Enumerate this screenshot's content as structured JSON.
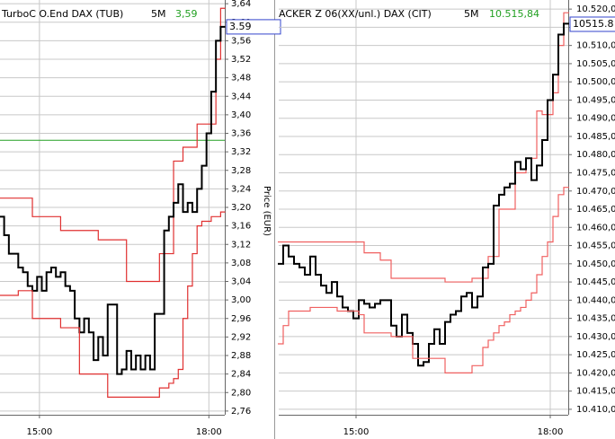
{
  "chart_data": [
    {
      "type": "line",
      "title": "TurboC O.End DAX (TUB)",
      "interval": "5M",
      "header_value": {
        "value": 3.59,
        "label": "3,59"
      },
      "header_value_color": "#22a022",
      "last_price": {
        "value": 3.59,
        "label": "3.59"
      },
      "last_price_box_color": "#3344cc",
      "y_axis_label": "Price (EUR)",
      "step": true,
      "reference_line": {
        "value": 3.345,
        "color": "#22a022"
      },
      "categories": [
        null,
        null,
        null,
        null,
        null,
        null,
        null,
        null,
        "15:00",
        null,
        null,
        null,
        null,
        null,
        null,
        null,
        null,
        null,
        null,
        null,
        null,
        null,
        null,
        null,
        null,
        null,
        null,
        null,
        null,
        null,
        null,
        null,
        null,
        null,
        null,
        null,
        null,
        null,
        null,
        null,
        null,
        null,
        null,
        null,
        "18:00",
        null,
        null,
        null
      ],
      "series": [
        {
          "color": "#e03030",
          "values": [
            3.22,
            3.22,
            3.22,
            3.22,
            3.22,
            3.22,
            3.22,
            3.18,
            3.18,
            3.18,
            3.18,
            3.18,
            3.18,
            3.15,
            3.15,
            3.15,
            3.15,
            3.15,
            3.15,
            3.15,
            3.15,
            3.13,
            3.13,
            3.13,
            3.13,
            3.13,
            3.13,
            3.04,
            3.04,
            3.04,
            3.04,
            3.04,
            3.04,
            3.04,
            3.1,
            3.1,
            3.1,
            3.3,
            3.3,
            3.33,
            3.33,
            3.33,
            3.38,
            3.38,
            3.38,
            3.38,
            3.52,
            3.63
          ]
        },
        {
          "color": "#000000",
          "values": [
            3.18,
            3.14,
            3.1,
            3.1,
            3.07,
            3.06,
            3.03,
            3.02,
            3.05,
            3.02,
            3.06,
            3.07,
            3.05,
            3.06,
            3.03,
            3.02,
            2.96,
            2.93,
            2.96,
            2.93,
            2.87,
            2.92,
            2.88,
            2.99,
            2.99,
            2.84,
            2.85,
            2.89,
            2.85,
            2.88,
            2.85,
            2.88,
            2.85,
            2.97,
            2.97,
            3.15,
            3.18,
            3.21,
            3.25,
            3.19,
            3.21,
            3.19,
            3.24,
            3.29,
            3.36,
            3.45,
            3.56,
            3.59
          ]
        },
        {
          "color": "#e03030",
          "values": [
            3.01,
            3.01,
            3.01,
            3.01,
            3.02,
            3.02,
            3.02,
            2.96,
            2.96,
            2.96,
            2.96,
            2.96,
            2.96,
            2.94,
            2.94,
            2.94,
            2.94,
            2.84,
            2.84,
            2.84,
            2.84,
            2.84,
            2.84,
            2.79,
            2.79,
            2.79,
            2.79,
            2.79,
            2.79,
            2.79,
            2.79,
            2.79,
            2.79,
            2.79,
            2.81,
            2.81,
            2.82,
            2.83,
            2.85,
            2.96,
            3.03,
            3.1,
            3.16,
            3.17,
            3.17,
            3.18,
            3.18,
            3.19
          ]
        }
      ],
      "ylim": [
        2.752,
        3.648
      ],
      "yticks": [
        {
          "value": 3.64,
          "label": "3,64"
        },
        {
          "value": 3.6,
          "label": "3,60"
        },
        {
          "value": 3.56,
          "label": "3,56"
        },
        {
          "value": 3.52,
          "label": "3,52"
        },
        {
          "value": 3.48,
          "label": "3,48"
        },
        {
          "value": 3.44,
          "label": "3,44"
        },
        {
          "value": 3.4,
          "label": "3,40"
        },
        {
          "value": 3.36,
          "label": "3,36"
        },
        {
          "value": 3.32,
          "label": "3,32"
        },
        {
          "value": 3.28,
          "label": "3,28"
        },
        {
          "value": 3.24,
          "label": "3,24"
        },
        {
          "value": 3.2,
          "label": "3,20"
        },
        {
          "value": 3.16,
          "label": "3,16"
        },
        {
          "value": 3.12,
          "label": "3,12"
        },
        {
          "value": 3.08,
          "label": "3,08"
        },
        {
          "value": 3.04,
          "label": "3,04"
        },
        {
          "value": 3.0,
          "label": "3,00"
        },
        {
          "value": 2.96,
          "label": "2,96"
        },
        {
          "value": 2.92,
          "label": "2,92"
        },
        {
          "value": 2.88,
          "label": "2,88"
        },
        {
          "value": 2.84,
          "label": "2,84"
        },
        {
          "value": 2.8,
          "label": "2,80"
        },
        {
          "value": 2.76,
          "label": "2,76"
        }
      ],
      "grid": true
    },
    {
      "type": "line",
      "title": "ACKER Z 06(XX/unl.) DAX (CIT)",
      "interval": "5M",
      "header_value": {
        "value": 10515.84,
        "label": "10.515,84"
      },
      "header_value_color": "#22a022",
      "last_price": {
        "value": 10515.84,
        "label": "10515.8"
      },
      "last_price_box_color": "#3344cc",
      "step": true,
      "categories": [
        null,
        null,
        null,
        null,
        null,
        null,
        null,
        null,
        null,
        null,
        null,
        null,
        null,
        null,
        "15:00",
        null,
        null,
        null,
        null,
        null,
        null,
        null,
        null,
        null,
        null,
        null,
        null,
        null,
        null,
        null,
        null,
        null,
        null,
        null,
        null,
        null,
        null,
        null,
        null,
        null,
        null,
        null,
        null,
        null,
        null,
        null,
        null,
        null,
        null,
        null,
        "18:00",
        null,
        null,
        null
      ],
      "series": [
        {
          "color": "#f06060",
          "values": [
            10456,
            10456,
            10456,
            10456,
            10456,
            10456,
            10456,
            10456,
            10456,
            10456,
            10456,
            10456,
            10456,
            10456,
            10456,
            10456,
            10453,
            10453,
            10453,
            10451,
            10451,
            10446,
            10446,
            10446,
            10446,
            10446,
            10446,
            10446,
            10446,
            10446,
            10446,
            10445,
            10445,
            10445,
            10445,
            10445,
            10446,
            10446,
            10446,
            10452,
            10452,
            10465,
            10465,
            10465,
            10475,
            10475,
            10479,
            10479,
            10492,
            10491,
            10491,
            10497,
            10510,
            10519
          ]
        },
        {
          "color": "#000000",
          "values": [
            10450,
            10455,
            10452,
            10450,
            10449,
            10447,
            10452,
            10447,
            10444,
            10442,
            10445,
            10441,
            10438,
            10437,
            10435,
            10440,
            10439,
            10438,
            10439,
            10440,
            10440,
            10433,
            10430,
            10436,
            10431,
            10428,
            10422,
            10423,
            10428,
            10432,
            10428,
            10434,
            10436,
            10437,
            10441,
            10442,
            10438,
            10441,
            10449,
            10450,
            10466,
            10469,
            10471,
            10472,
            10478,
            10476,
            10479,
            10473,
            10477,
            10484,
            10495,
            10502,
            10513,
            10516
          ]
        },
        {
          "color": "#f06060",
          "values": [
            10428,
            10433,
            10437,
            10437,
            10437,
            10437,
            10438,
            10438,
            10438,
            10438,
            10438,
            10437,
            10437,
            10437,
            10437,
            10436,
            10431,
            10431,
            10431,
            10431,
            10431,
            10430,
            10430,
            10430,
            10430,
            10424,
            10424,
            10424,
            10424,
            10424,
            10424,
            10420,
            10420,
            10420,
            10420,
            10420,
            10422,
            10422,
            10427,
            10429,
            10431,
            10433,
            10434,
            10436,
            10437,
            10438,
            10440,
            10442,
            10447,
            10452,
            10456,
            10463,
            10469,
            10471
          ]
        }
      ],
      "ylim": [
        10408.5,
        10522.5
      ],
      "yticks": [
        {
          "value": 10520,
          "label": "10.520,00"
        },
        {
          "value": 10515,
          "label": "10.515,00"
        },
        {
          "value": 10510,
          "label": "10.510,00"
        },
        {
          "value": 10505,
          "label": "10.505,00"
        },
        {
          "value": 10500,
          "label": "10.500,00"
        },
        {
          "value": 10495,
          "label": "10.495,00"
        },
        {
          "value": 10490,
          "label": "10.490,00"
        },
        {
          "value": 10485,
          "label": "10.485,00"
        },
        {
          "value": 10480,
          "label": "10.480,00"
        },
        {
          "value": 10475,
          "label": "10.475,00"
        },
        {
          "value": 10470,
          "label": "10.470,00"
        },
        {
          "value": 10465,
          "label": "10.465,00"
        },
        {
          "value": 10460,
          "label": "10.460,00"
        },
        {
          "value": 10455,
          "label": "10.455,00"
        },
        {
          "value": 10450,
          "label": "10.450,00"
        },
        {
          "value": 10445,
          "label": "10.445,00"
        },
        {
          "value": 10440,
          "label": "10.440,00"
        },
        {
          "value": 10435,
          "label": "10.435,00"
        },
        {
          "value": 10430,
          "label": "10.430,00"
        },
        {
          "value": 10425,
          "label": "10.425,00"
        },
        {
          "value": 10420,
          "label": "10.420,00"
        },
        {
          "value": 10415,
          "label": "10.415,00"
        },
        {
          "value": 10410,
          "label": "10.410,00"
        }
      ],
      "grid": true
    }
  ]
}
